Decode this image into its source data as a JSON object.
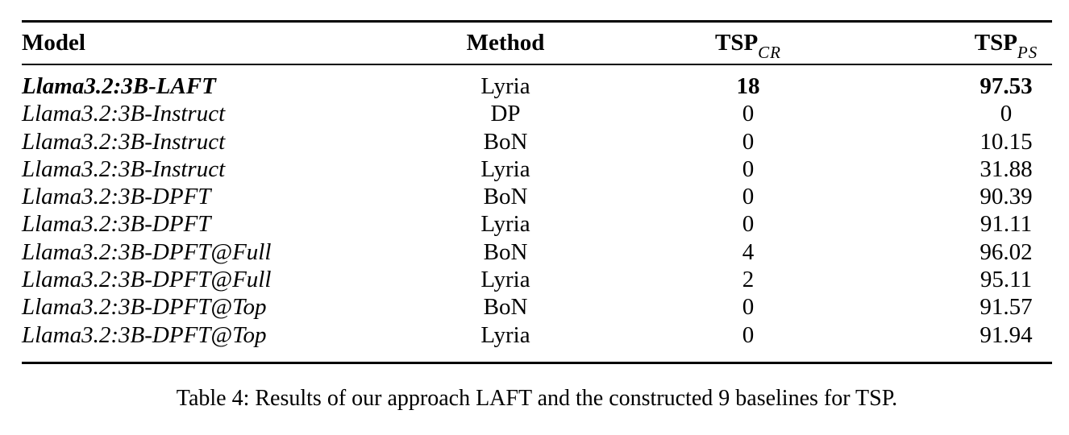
{
  "table": {
    "header": {
      "model": "Model",
      "method": "Method",
      "tsp_cr": {
        "base": "TSP",
        "sub": "CR"
      },
      "tsp_ps": {
        "base": "TSP",
        "sub": "PS"
      }
    },
    "rows": [
      {
        "model": "Llama3.2:3B-LAFT",
        "method": "Lyria",
        "tsp_cr": "18",
        "tsp_ps": "97.53"
      },
      {
        "model": "Llama3.2:3B-Instruct",
        "method": "DP",
        "tsp_cr": "0",
        "tsp_ps": "0"
      },
      {
        "model": "Llama3.2:3B-Instruct",
        "method": "BoN",
        "tsp_cr": "0",
        "tsp_ps": "10.15"
      },
      {
        "model": "Llama3.2:3B-Instruct",
        "method": "Lyria",
        "tsp_cr": "0",
        "tsp_ps": "31.88"
      },
      {
        "model": "Llama3.2:3B-DPFT",
        "method": "BoN",
        "tsp_cr": "0",
        "tsp_ps": "90.39"
      },
      {
        "model": "Llama3.2:3B-DPFT",
        "method": "Lyria",
        "tsp_cr": "0",
        "tsp_ps": "91.11"
      },
      {
        "model": "Llama3.2:3B-DPFT@Full",
        "method": "BoN",
        "tsp_cr": "4",
        "tsp_ps": "96.02"
      },
      {
        "model": "Llama3.2:3B-DPFT@Full",
        "method": "Lyria",
        "tsp_cr": "2",
        "tsp_ps": "95.11"
      },
      {
        "model": "Llama3.2:3B-DPFT@Top",
        "method": "BoN",
        "tsp_cr": "0",
        "tsp_ps": "91.57"
      },
      {
        "model": "Llama3.2:3B-DPFT@Top",
        "method": "Lyria",
        "tsp_cr": "0",
        "tsp_ps": "91.94"
      }
    ],
    "caption": "Table 4: Results of our approach LAFT and the constructed 9 baselines for TSP.",
    "colors": {
      "text": "#000000",
      "background": "#ffffff",
      "rule": "#000000"
    }
  }
}
